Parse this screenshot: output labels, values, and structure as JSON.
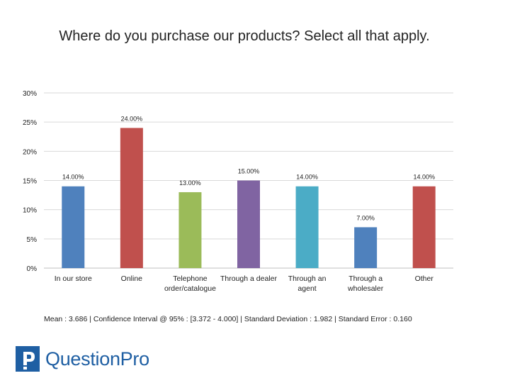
{
  "title": "Where do you purchase our products? Select all that apply.",
  "chart_data": {
    "type": "bar",
    "categories": [
      "In our store",
      "Online",
      "Telephone order/catalogue",
      "Through a dealer",
      "Through an agent",
      "Through a wholesaler",
      "Other"
    ],
    "category_lines": [
      [
        "In our store"
      ],
      [
        "Online"
      ],
      [
        "Telephone",
        "order/catalogue"
      ],
      [
        "Through a dealer"
      ],
      [
        "Through an",
        "agent"
      ],
      [
        "Through a",
        "wholesaler"
      ],
      [
        "Other"
      ]
    ],
    "values": [
      14,
      24,
      13,
      15,
      14,
      7,
      14
    ],
    "data_labels": [
      "14.00%",
      "24.00%",
      "13.00%",
      "15.00%",
      "14.00%",
      "7.00%",
      "14.00%"
    ],
    "bar_colors": [
      "#4f81bd",
      "#c0504d",
      "#9bbb59",
      "#8064a2",
      "#4bacc6",
      "#4f81bd",
      "#c0504d"
    ],
    "ylim": [
      0,
      30
    ],
    "yticks": [
      0,
      5,
      10,
      15,
      20,
      25,
      30
    ],
    "ytick_labels": [
      "0%",
      "5%",
      "10%",
      "15%",
      "20%",
      "25%",
      "30%"
    ],
    "grid": true,
    "xlabel": "",
    "ylabel": ""
  },
  "stats_text": "Mean : 3.686  |  Confidence Interval @ 95% : [3.372 - 4.000]  |  Standard Deviation : 1.982  |  Standard Error : 0.160",
  "logo": {
    "text": "QuestionPro",
    "color": "#1f5fa3"
  }
}
